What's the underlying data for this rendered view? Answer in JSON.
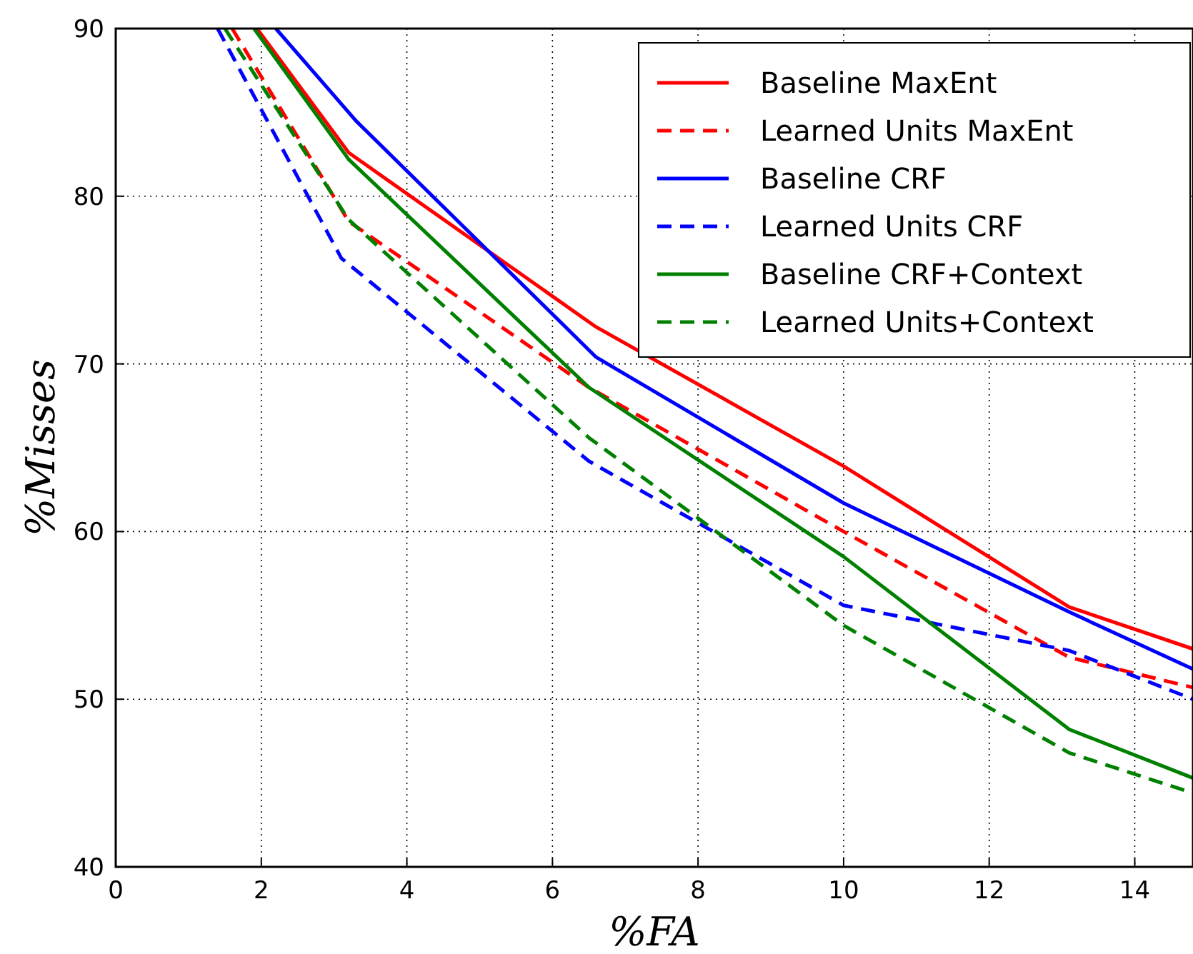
{
  "chart_data": {
    "type": "line",
    "xlabel": "%FA",
    "ylabel": "%Misses",
    "xlim": [
      0,
      14.8
    ],
    "ylim": [
      40,
      90
    ],
    "xticks": [
      0,
      2,
      4,
      6,
      8,
      10,
      12,
      14
    ],
    "yticks": [
      40,
      50,
      60,
      70,
      80,
      90
    ],
    "grid": true,
    "legend": "top right",
    "series": [
      {
        "name": "Baseline MaxEnt",
        "color": "#ff0000",
        "line_style": "solid",
        "x": [
          1.94,
          3.2,
          6.6,
          10,
          13.1,
          14.8
        ],
        "values": [
          90,
          82.6,
          72.2,
          63.9,
          55.5,
          53.0
        ]
      },
      {
        "name": "Learned Units MaxEnt",
        "color": "#ff0000",
        "line_style": "dashed",
        "x": [
          1.6,
          3.2,
          6.5,
          10,
          13.1,
          14.8
        ],
        "values": [
          90,
          78.5,
          68.6,
          60.0,
          52.5,
          50.7
        ]
      },
      {
        "name": "Baseline CRF",
        "color": "#0000ff",
        "line_style": "solid",
        "x": [
          2.2,
          3.3,
          6.6,
          10,
          13.1,
          14.8
        ],
        "values": [
          90,
          84.5,
          70.4,
          61.7,
          55.2,
          51.8
        ]
      },
      {
        "name": "Learned Units CRF",
        "color": "#0000ff",
        "line_style": "dashed",
        "x": [
          1.4,
          3.1,
          6.5,
          10,
          13.1,
          14.8
        ],
        "values": [
          90,
          76.3,
          64.2,
          55.6,
          52.9,
          50.0
        ]
      },
      {
        "name": "Baseline CRF+Context",
        "color": "#008000",
        "line_style": "solid",
        "x": [
          1.9,
          3.2,
          6.5,
          10,
          13.1,
          14.8
        ],
        "values": [
          90,
          82.2,
          68.6,
          58.5,
          48.2,
          45.3
        ]
      },
      {
        "name": "Learned Units+Context",
        "color": "#008000",
        "line_style": "dashed",
        "x": [
          1.5,
          3.2,
          6.5,
          10,
          13.1,
          14.8
        ],
        "values": [
          90,
          78.6,
          65.6,
          54.4,
          46.8,
          44.4
        ]
      }
    ]
  }
}
